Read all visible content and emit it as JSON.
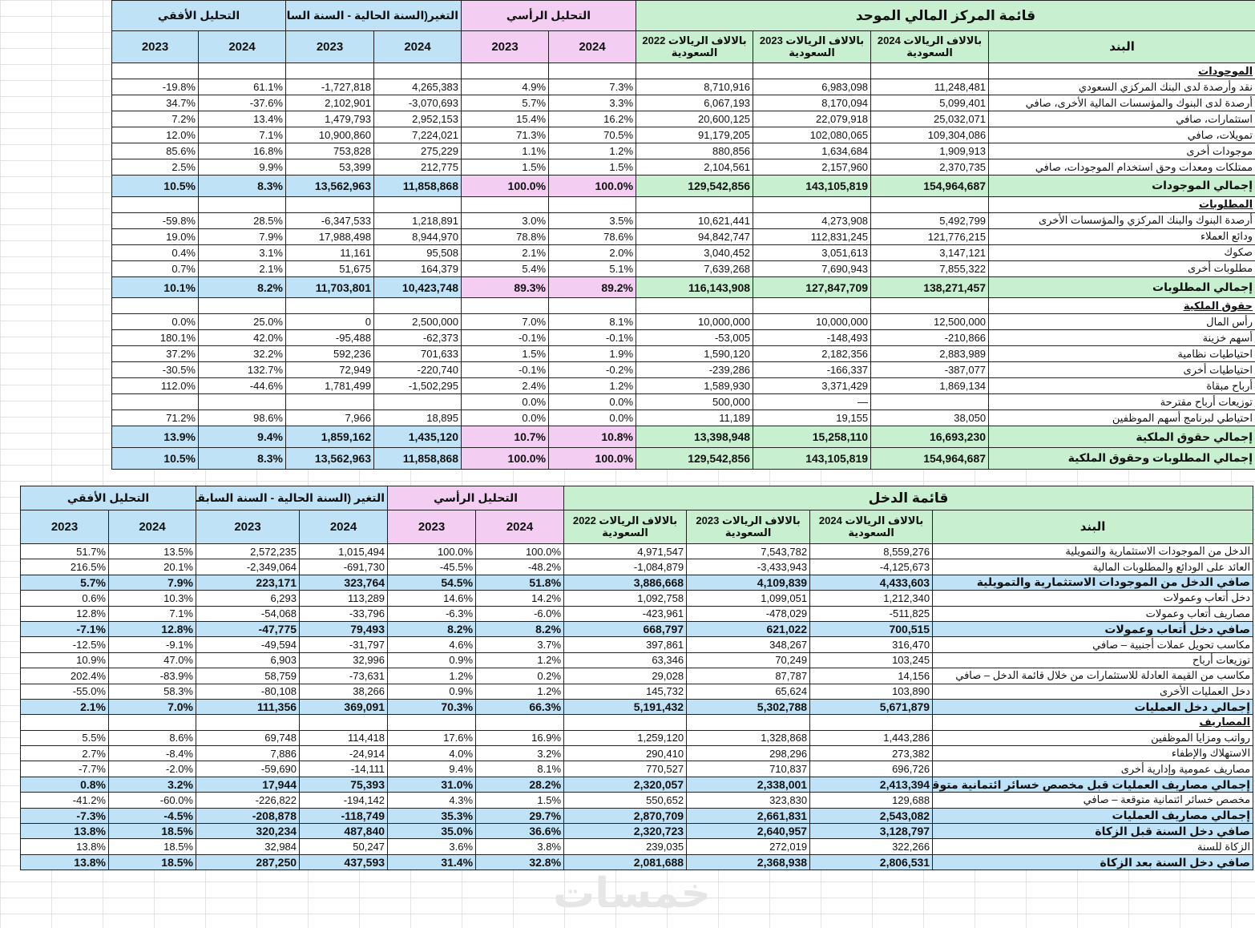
{
  "balance_sheet": {
    "groups": [
      "قائمة المركز المالي الموحد",
      "التحليل الرأسي",
      "التغير(السنة الحالية - السنة السابقة)",
      "التحليل الأفقي"
    ],
    "columns": [
      "البند",
      "بالالاف الريالات 2024 السعودية",
      "بالالاف الريالات 2023 السعودية",
      "بالالاف الريالات 2022 السعودية",
      "2024",
      "2023",
      "2024",
      "2023",
      "2024",
      "2023"
    ],
    "rows": [
      {
        "section": "الموجودات"
      },
      {
        "cells": [
          "نقد وأرصدة لدى البنك المركزي السعودي",
          "11,248,481",
          "6,983,098",
          "8,710,916",
          "7.3%",
          "4.9%",
          "4,265,383",
          "-1,727,818",
          "61.1%",
          "-19.8%"
        ]
      },
      {
        "cells": [
          "أرصدة لدى البنوك والمؤسسات المالية الأخرى، صافي",
          "5,099,401",
          "8,170,094",
          "6,067,193",
          "3.3%",
          "5.7%",
          "-3,070,693",
          "2,102,901",
          "-37.6%",
          "34.7%"
        ]
      },
      {
        "cells": [
          "استثمارات، صافي",
          "25,032,071",
          "22,079,918",
          "20,600,125",
          "16.2%",
          "15.4%",
          "2,952,153",
          "1,479,793",
          "13.4%",
          "7.2%"
        ]
      },
      {
        "cells": [
          "تمويلات، صافي",
          "109,304,086",
          "102,080,065",
          "91,179,205",
          "70.5%",
          "71.3%",
          "7,224,021",
          "10,900,860",
          "7.1%",
          "12.0%"
        ]
      },
      {
        "cells": [
          "موجودات أخرى",
          "1,909,913",
          "1,634,684",
          "880,856",
          "1.2%",
          "1.1%",
          "275,229",
          "753,828",
          "16.8%",
          "85.6%"
        ]
      },
      {
        "cells": [
          "ممتلكات ومعدات وحق استخدام الموجودات، صافي",
          "2,370,735",
          "2,157,960",
          "2,104,561",
          "1.5%",
          "1.5%",
          "212,775",
          "53,399",
          "9.9%",
          "2.5%"
        ]
      },
      {
        "total": true,
        "cells": [
          "إجمالي الموجودات",
          "154,964,687",
          "143,105,819",
          "129,542,856",
          "100.0%",
          "100.0%",
          "11,858,868",
          "13,562,963",
          "8.3%",
          "10.5%"
        ]
      },
      {
        "section": "المطلوبات"
      },
      {
        "cells": [
          "أرصدة البنوك والبنك المركزي والمؤسسات الأخرى",
          "5,492,799",
          "4,273,908",
          "10,621,441",
          "3.5%",
          "3.0%",
          "1,218,891",
          "-6,347,533",
          "28.5%",
          "-59.8%"
        ]
      },
      {
        "cells": [
          "ودائع العملاء",
          "121,776,215",
          "112,831,245",
          "94,842,747",
          "78.6%",
          "78.8%",
          "8,944,970",
          "17,988,498",
          "7.9%",
          "19.0%"
        ]
      },
      {
        "cells": [
          "صكوك",
          "3,147,121",
          "3,051,613",
          "3,040,452",
          "2.0%",
          "2.1%",
          "95,508",
          "11,161",
          "3.1%",
          "0.4%"
        ]
      },
      {
        "cells": [
          "مطلوبات أخرى",
          "7,855,322",
          "7,690,943",
          "7,639,268",
          "5.1%",
          "5.4%",
          "164,379",
          "51,675",
          "2.1%",
          "0.7%"
        ]
      },
      {
        "total": true,
        "cells": [
          "إجمالي المطلوبات",
          "138,271,457",
          "127,847,709",
          "116,143,908",
          "89.2%",
          "89.3%",
          "10,423,748",
          "11,703,801",
          "8.2%",
          "10.1%"
        ]
      },
      {
        "section": "حقوق الملكية"
      },
      {
        "cells": [
          "رأس المال",
          "12,500,000",
          "10,000,000",
          "10,000,000",
          "8.1%",
          "7.0%",
          "2,500,000",
          "0",
          "25.0%",
          "0.0%"
        ]
      },
      {
        "cells": [
          "أسهم خزينة",
          "-210,866",
          "-148,493",
          "-53,005",
          "-0.1%",
          "-0.1%",
          "-62,373",
          "-95,488",
          "42.0%",
          "180.1%"
        ]
      },
      {
        "cells": [
          "احتياطيات نظامية",
          "2,883,989",
          "2,182,356",
          "1,590,120",
          "1.9%",
          "1.5%",
          "701,633",
          "592,236",
          "32.2%",
          "37.2%"
        ]
      },
      {
        "cells": [
          "احتياطيات أخرى",
          "-387,077",
          "-166,337",
          "-239,286",
          "-0.2%",
          "-0.1%",
          "-220,740",
          "72,949",
          "132.7%",
          "-30.5%"
        ]
      },
      {
        "cells": [
          "أرباح مبقاة",
          "1,869,134",
          "3,371,429",
          "1,589,930",
          "1.2%",
          "2.4%",
          "-1,502,295",
          "1,781,499",
          "-44.6%",
          "112.0%"
        ]
      },
      {
        "cells": [
          "توزيعات أرباح مقترحة",
          null,
          "—",
          "500,000",
          "0.0%",
          "0.0%",
          null,
          null,
          null,
          null
        ]
      },
      {
        "cells": [
          "احتياطي لبرنامج أسهم الموظفين",
          "38,050",
          "19,155",
          "11,189",
          "0.0%",
          "0.0%",
          "18,895",
          "7,966",
          "98.6%",
          "71.2%"
        ]
      },
      {
        "total": true,
        "cells": [
          "إجمالي حقوق الملكية",
          "16,693,230",
          "15,258,110",
          "13,398,948",
          "10.8%",
          "10.7%",
          "1,435,120",
          "1,859,162",
          "9.4%",
          "13.9%"
        ]
      },
      {
        "total": true,
        "cells": [
          "إجمالي المطلوبات وحقوق الملكية",
          "154,964,687",
          "143,105,819",
          "129,542,856",
          "100.0%",
          "100.0%",
          "11,858,868",
          "13,562,963",
          "8.3%",
          "10.5%"
        ]
      }
    ]
  },
  "income_statement": {
    "groups": [
      "قائمة الدخل",
      "التحليل الرأسي",
      "التغير (السنة الحالية - السنة السابقة)",
      "التحليل الأفقي"
    ],
    "columns": [
      "البند",
      "بالالاف الريالات 2024 السعودية",
      "بالالاف الريالات 2023 السعودية",
      "بالالاف الريالات 2022 السعودية",
      "2024",
      "2023",
      "2024",
      "2023",
      "2024",
      "2023"
    ],
    "rows": [
      {
        "cells": [
          "الدخل من الموجودات الاستثمارية والتمويلية",
          "8,559,276",
          "7,543,782",
          "4,971,547",
          "100.0%",
          "100.0%",
          "1,015,494",
          "2,572,235",
          "13.5%",
          "51.7%"
        ]
      },
      {
        "cells": [
          "العائد على الودائع والمطلوبات المالية",
          "-4,125,673",
          "-3,433,943",
          "-1,084,879",
          "-48.2%",
          "-45.5%",
          "-691,730",
          "-2,349,064",
          "20.1%",
          "216.5%"
        ]
      },
      {
        "total": true,
        "cells": [
          "صافي الدخل من الموجودات الاستثمارية والتمويلية",
          "4,433,603",
          "4,109,839",
          "3,886,668",
          "51.8%",
          "54.5%",
          "323,764",
          "223,171",
          "7.9%",
          "5.7%"
        ]
      },
      {
        "cells": [
          "دخل أتعاب وعمولات",
          "1,212,340",
          "1,099,051",
          "1,092,758",
          "14.2%",
          "14.6%",
          "113,289",
          "6,293",
          "10.3%",
          "0.6%"
        ]
      },
      {
        "cells": [
          "مصاريف أتعاب وعمولات",
          "-511,825",
          "-478,029",
          "-423,961",
          "-6.0%",
          "-6.3%",
          "-33,796",
          "-54,068",
          "7.1%",
          "12.8%"
        ]
      },
      {
        "total": true,
        "cells": [
          "صافي دخل أتعاب وعمولات",
          "700,515",
          "621,022",
          "668,797",
          "8.2%",
          "8.2%",
          "79,493",
          "-47,775",
          "12.8%",
          "-7.1%"
        ]
      },
      {
        "cells": [
          "مكاسب تحويل عملات أجنبية – صافي",
          "316,470",
          "348,267",
          "397,861",
          "3.7%",
          "4.6%",
          "-31,797",
          "-49,594",
          "-9.1%",
          "-12.5%"
        ]
      },
      {
        "cells": [
          "توزيعات أرباح",
          "103,245",
          "70,249",
          "63,346",
          "1.2%",
          "0.9%",
          "32,996",
          "6,903",
          "47.0%",
          "10.9%"
        ]
      },
      {
        "cells": [
          "مكاسب من القيمة العادلة للاستثمارات من خلال قائمة الدخل – صافي",
          "14,156",
          "87,787",
          "29,028",
          "0.2%",
          "1.2%",
          "-73,631",
          "58,759",
          "-83.9%",
          "202.4%"
        ]
      },
      {
        "cells": [
          "دخل العمليات الأخرى",
          "103,890",
          "65,624",
          "145,732",
          "1.2%",
          "0.9%",
          "38,266",
          "-80,108",
          "58.3%",
          "-55.0%"
        ]
      },
      {
        "total": true,
        "cells": [
          "إجمالي دخل العمليات",
          "5,671,879",
          "5,302,788",
          "5,191,432",
          "66.3%",
          "70.3%",
          "369,091",
          "111,356",
          "7.0%",
          "2.1%"
        ]
      },
      {
        "section": "المصاريف"
      },
      {
        "cells": [
          "رواتب ومزايا الموظفين",
          "1,443,286",
          "1,328,868",
          "1,259,120",
          "16.9%",
          "17.6%",
          "114,418",
          "69,748",
          "8.6%",
          "5.5%"
        ]
      },
      {
        "cells": [
          "الاستهلاك والإطفاء",
          "273,382",
          "298,296",
          "290,410",
          "3.2%",
          "4.0%",
          "-24,914",
          "7,886",
          "-8.4%",
          "2.7%"
        ]
      },
      {
        "cells": [
          "مصاريف عمومية وإدارية أخرى",
          "696,726",
          "710,837",
          "770,527",
          "8.1%",
          "9.4%",
          "-14,111",
          "-59,690",
          "-2.0%",
          "-7.7%"
        ]
      },
      {
        "total": true,
        "cells": [
          "إجمالي مصاريف العمليات قبل مخصص خسائر ائتمانية متوقعة",
          "2,413,394",
          "2,338,001",
          "2,320,057",
          "28.2%",
          "31.0%",
          "75,393",
          "17,944",
          "3.2%",
          "0.8%"
        ]
      },
      {
        "cells": [
          "مخصص خسائر ائتمانية متوقعة – صافي",
          "129,688",
          "323,830",
          "550,652",
          "1.5%",
          "4.3%",
          "-194,142",
          "-226,822",
          "-60.0%",
          "-41.2%"
        ]
      },
      {
        "total": true,
        "cells": [
          "إجمالي مصاريف العمليات",
          "2,543,082",
          "2,661,831",
          "2,870,709",
          "29.7%",
          "35.3%",
          "-118,749",
          "-208,878",
          "-4.5%",
          "-7.3%"
        ]
      },
      {
        "total": true,
        "cells": [
          "صافي دخل السنة قبل الزكاة",
          "3,128,797",
          "2,640,957",
          "2,320,723",
          "36.6%",
          "35.0%",
          "487,840",
          "320,234",
          "18.5%",
          "13.8%"
        ]
      },
      {
        "cells": [
          "الزكاة للسنة",
          "322,266",
          "272,019",
          "239,035",
          "3.8%",
          "3.6%",
          "50,247",
          "32,984",
          "18.5%",
          "13.8%"
        ]
      },
      {
        "total": true,
        "cells": [
          "صافي دخل السنة بعد الزكاة",
          "2,806,531",
          "2,368,938",
          "2,081,688",
          "32.8%",
          "31.4%",
          "437,593",
          "287,250",
          "18.5%",
          "13.8%"
        ]
      }
    ]
  },
  "watermark": "خمسات"
}
